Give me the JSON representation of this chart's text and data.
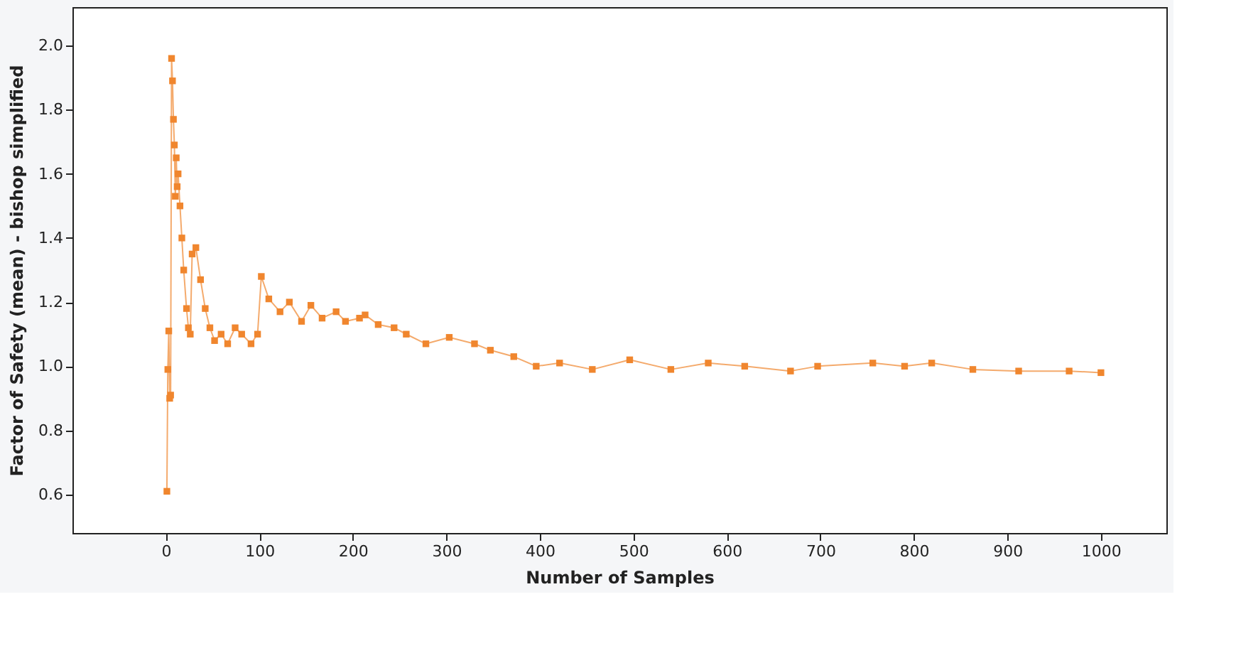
{
  "chart_data": {
    "type": "line",
    "xlabel": "Number of Samples",
    "ylabel": "Factor of Safety (mean) - bishop simplified",
    "x": [
      1,
      2,
      3,
      4,
      5,
      6,
      7,
      8,
      9,
      10,
      11,
      12,
      13,
      15,
      17,
      19,
      22,
      24,
      26,
      28,
      32,
      37,
      42,
      47,
      52,
      59,
      66,
      74,
      81,
      91,
      98,
      102,
      110,
      122,
      132,
      145,
      155,
      167,
      182,
      192,
      207,
      213,
      227,
      244,
      257,
      278,
      303,
      330,
      347,
      372,
      396,
      421,
      456,
      496,
      540,
      580,
      619,
      668,
      697,
      756,
      790,
      819,
      863,
      912,
      966,
      1000
    ],
    "series": [
      {
        "color": "#f0862e",
        "values": [
          0.61,
          0.99,
          1.11,
          0.9,
          0.91,
          1.96,
          1.89,
          1.77,
          1.69,
          1.53,
          1.65,
          1.56,
          1.6,
          1.5,
          1.4,
          1.3,
          1.18,
          1.12,
          1.1,
          1.35,
          1.37,
          1.27,
          1.18,
          1.12,
          1.08,
          1.1,
          1.07,
          1.12,
          1.1,
          1.07,
          1.1,
          1.28,
          1.21,
          1.17,
          1.2,
          1.14,
          1.19,
          1.15,
          1.17,
          1.14,
          1.15,
          1.16,
          1.13,
          1.12,
          1.1,
          1.07,
          1.09,
          1.07,
          1.05,
          1.03,
          1.0,
          1.01,
          0.99,
          1.02,
          0.99,
          1.01,
          1.0,
          0.985,
          1.0,
          1.01,
          1.0,
          1.01,
          0.99,
          0.985,
          0.985,
          0.98
        ]
      }
    ],
    "xlim": [
      -100,
      1070
    ],
    "ylim": [
      0.48,
      2.12
    ],
    "xticks": [
      0,
      100,
      200,
      300,
      400,
      500,
      600,
      700,
      800,
      900,
      1000
    ],
    "yticks": [
      0.6,
      0.8,
      {
        "value": 1.0,
        "label": "1.0"
      },
      1.2,
      1.4,
      1.6,
      1.8,
      {
        "value": 2.0,
        "label": "2.0"
      }
    ],
    "marker": "square",
    "line_style": "solid",
    "grid": false
  }
}
